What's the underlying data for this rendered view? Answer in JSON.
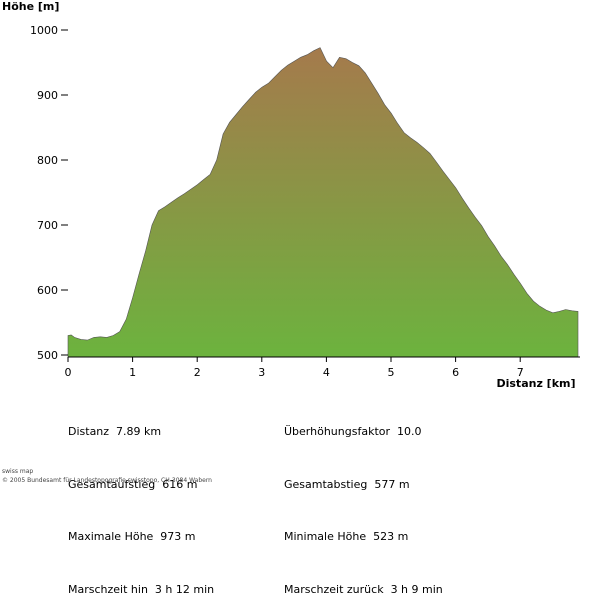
{
  "chart_data": {
    "type": "area",
    "ylabel": "Höhe [m]",
    "xlabel": "Distanz [km]",
    "xlim": [
      0,
      7.89
    ],
    "ylim": [
      500,
      1000
    ],
    "yticks": [
      500,
      600,
      700,
      800,
      900,
      1000
    ],
    "xticks": [
      0,
      1,
      2,
      3,
      4,
      5,
      6,
      7
    ],
    "grid": false,
    "fill_gradient": [
      "#6cb33e",
      "#a57a4c"
    ],
    "x": [
      0,
      0.05,
      0.1,
      0.2,
      0.3,
      0.4,
      0.5,
      0.6,
      0.7,
      0.8,
      0.9,
      1.0,
      1.1,
      1.2,
      1.3,
      1.4,
      1.5,
      1.6,
      1.7,
      1.8,
      1.9,
      2.0,
      2.1,
      2.2,
      2.3,
      2.4,
      2.5,
      2.6,
      2.7,
      2.8,
      2.9,
      3.0,
      3.1,
      3.2,
      3.3,
      3.4,
      3.5,
      3.6,
      3.7,
      3.8,
      3.9,
      4.0,
      4.1,
      4.2,
      4.3,
      4.4,
      4.5,
      4.6,
      4.7,
      4.8,
      4.9,
      5.0,
      5.1,
      5.2,
      5.3,
      5.4,
      5.5,
      5.6,
      5.7,
      5.8,
      5.9,
      6.0,
      6.1,
      6.2,
      6.3,
      6.4,
      6.5,
      6.6,
      6.7,
      6.8,
      6.9,
      7.0,
      7.1,
      7.2,
      7.3,
      7.4,
      7.5,
      7.6,
      7.7,
      7.8,
      7.89
    ],
    "y": [
      530,
      531,
      527,
      524,
      523,
      527,
      528,
      527,
      530,
      536,
      555,
      588,
      625,
      660,
      700,
      722,
      728,
      735,
      742,
      748,
      755,
      762,
      770,
      778,
      800,
      840,
      858,
      870,
      882,
      893,
      904,
      912,
      918,
      928,
      938,
      946,
      952,
      958,
      962,
      968,
      973,
      952,
      942,
      958,
      956,
      950,
      945,
      934,
      918,
      902,
      885,
      872,
      856,
      842,
      834,
      827,
      819,
      810,
      797,
      783,
      770,
      757,
      741,
      726,
      712,
      699,
      682,
      668,
      652,
      639,
      624,
      610,
      595,
      583,
      575,
      569,
      565,
      567,
      570,
      568,
      567
    ],
    "yaxis_title": "Höhe [m]",
    "xaxis_title": "Distanz [km]"
  },
  "stats": {
    "left": [
      "Distanz  7.89 km",
      "Gesamtaufstieg  616 m",
      "Maximale Höhe  973 m",
      "Marschzeit hin  3 h 12 min"
    ],
    "right": [
      "Überhöhungsfaktor  10.0",
      "Gesamtabstieg  577 m",
      "Minimale Höhe  523 m",
      "Marschzeit zurück  3 h 9 min"
    ]
  },
  "copyright": {
    "line1": "swiss map",
    "line2": "© 2005 Bundesamt für Landestopografie swisstopo, CH-3084 Wabern"
  }
}
